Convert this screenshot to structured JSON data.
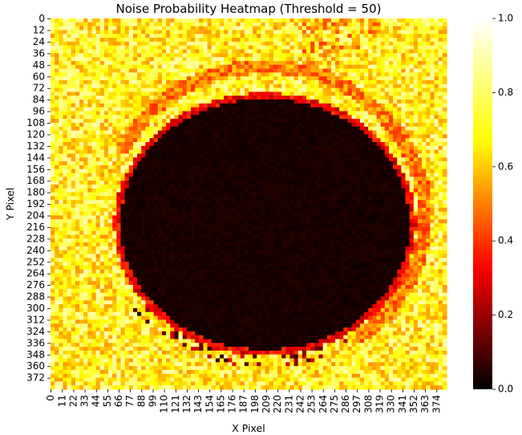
{
  "chart_data": {
    "type": "heatmap",
    "title": "Noise Probability Heatmap (Threshold = 50)",
    "xlabel": "X Pixel",
    "ylabel": "Y Pixel",
    "colormap": "hot",
    "colorbar_range": [
      0.0,
      1.0
    ],
    "colorbar_ticks": [
      "0.0",
      "0.2",
      "0.4",
      "0.6",
      "0.8",
      "1.0"
    ],
    "x_range": [
      0,
      384
    ],
    "y_range": [
      0,
      384
    ],
    "x_tick_labels": [
      "0",
      "11",
      "22",
      "33",
      "44",
      "55",
      "66",
      "77",
      "88",
      "99",
      "110",
      "121",
      "132",
      "143",
      "154",
      "165",
      "176",
      "187",
      "198",
      "209",
      "220",
      "231",
      "242",
      "253",
      "264",
      "275",
      "286",
      "297",
      "308",
      "319",
      "330",
      "341",
      "352",
      "363",
      "374"
    ],
    "y_tick_labels": [
      "0",
      "12",
      "24",
      "36",
      "48",
      "60",
      "72",
      "84",
      "96",
      "108",
      "120",
      "132",
      "144",
      "156",
      "168",
      "180",
      "192",
      "204",
      "216",
      "228",
      "240",
      "252",
      "264",
      "276",
      "288",
      "300",
      "312",
      "324",
      "336",
      "348",
      "360",
      "372"
    ],
    "features": {
      "background_value": 0.75,
      "dark_disk": {
        "center": [
          208,
          213
        ],
        "radius_x": 142,
        "radius_y": 132,
        "value": 0.02
      },
      "bright_arc": {
        "center": [
          208,
          205
        ],
        "radius": 155,
        "value": 0.55
      }
    }
  }
}
